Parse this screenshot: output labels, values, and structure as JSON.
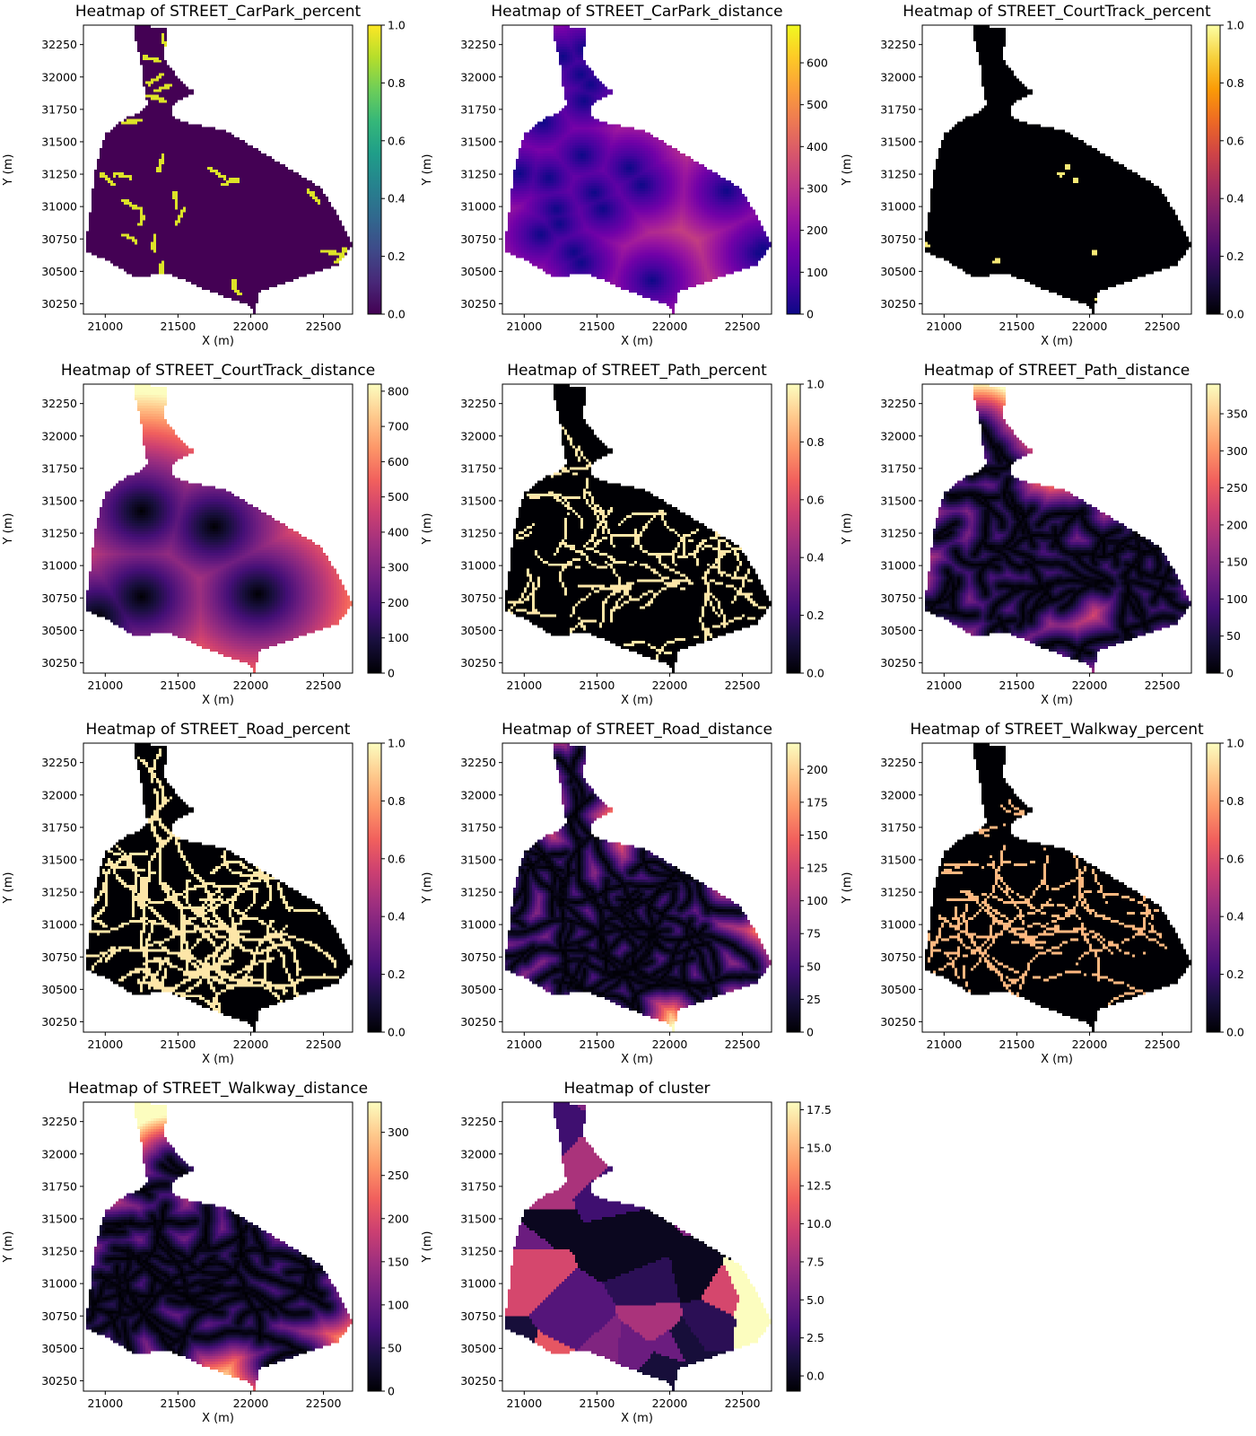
{
  "colormaps": {
    "viridis": [
      "#440154",
      "#482878",
      "#3e4a89",
      "#31688e",
      "#26828e",
      "#1f9e89",
      "#35b779",
      "#6ece58",
      "#b5de2b",
      "#fde725"
    ],
    "plasma": [
      "#0d0887",
      "#46039f",
      "#7201a8",
      "#9c179e",
      "#bd3786",
      "#d8576b",
      "#ed7953",
      "#fb9f3a",
      "#fdca26",
      "#f0f921"
    ],
    "magma": [
      "#000004",
      "#180f3d",
      "#440f76",
      "#721f81",
      "#9e2f7f",
      "#cd4071",
      "#f1605d",
      "#fd9668",
      "#feca8d",
      "#fcfdbf"
    ],
    "inferno": [
      "#000004",
      "#1b0c41",
      "#4a0c6b",
      "#781c6d",
      "#a52c60",
      "#cf4446",
      "#ed6925",
      "#fb9b06",
      "#f7d13d",
      "#fcffa4"
    ]
  },
  "chart_data": [
    {
      "type": "heatmap",
      "title": "Heatmap of STREET_CarPark_percent",
      "xlabel": "X (m)",
      "ylabel": "Y (m)",
      "xlim": [
        20850,
        22700
      ],
      "ylim": [
        30170,
        32400
      ],
      "x_ticks": [
        21000,
        21500,
        22000,
        22500
      ],
      "y_ticks": [
        30250,
        30500,
        30750,
        31000,
        31250,
        31500,
        31750,
        32000,
        32250
      ],
      "colormap": "viridis",
      "clim": [
        0,
        1
      ],
      "colorbar_ticks": [
        "0.0",
        "0.2",
        "0.4",
        "0.6",
        "0.8",
        "1.0"
      ],
      "field": "carpark_pct"
    },
    {
      "type": "heatmap",
      "title": "Heatmap of STREET_CarPark_distance",
      "xlabel": "X (m)",
      "ylabel": "Y (m)",
      "xlim": [
        20850,
        22700
      ],
      "ylim": [
        30170,
        32400
      ],
      "x_ticks": [
        21000,
        21500,
        22000,
        22500
      ],
      "y_ticks": [
        30250,
        30500,
        30750,
        31000,
        31250,
        31500,
        31750,
        32000,
        32250
      ],
      "colormap": "plasma",
      "clim": [
        0,
        690
      ],
      "colorbar_ticks": [
        "0",
        "100",
        "200",
        "300",
        "400",
        "500",
        "600"
      ],
      "field": "carpark_dist"
    },
    {
      "type": "heatmap",
      "title": "Heatmap of STREET_CourtTrack_percent",
      "xlabel": "X (m)",
      "ylabel": "Y (m)",
      "xlim": [
        20850,
        22700
      ],
      "ylim": [
        30170,
        32400
      ],
      "x_ticks": [
        21000,
        21500,
        22000,
        22500
      ],
      "y_ticks": [
        30250,
        30500,
        30750,
        31000,
        31250,
        31500,
        31750,
        32000,
        32250
      ],
      "colormap": "inferno",
      "clim": [
        0,
        1
      ],
      "colorbar_ticks": [
        "0.0",
        "0.2",
        "0.4",
        "0.6",
        "0.8",
        "1.0"
      ],
      "field": "court_pct"
    },
    {
      "type": "heatmap",
      "title": "Heatmap of STREET_CourtTrack_distance",
      "xlabel": "X (m)",
      "ylabel": "Y (m)",
      "xlim": [
        20850,
        22700
      ],
      "ylim": [
        30170,
        32400
      ],
      "x_ticks": [
        21000,
        21500,
        22000,
        22500
      ],
      "y_ticks": [
        30250,
        30500,
        30750,
        31000,
        31250,
        31500,
        31750,
        32000,
        32250
      ],
      "colormap": "magma",
      "clim": [
        0,
        820
      ],
      "colorbar_ticks": [
        "0",
        "100",
        "200",
        "300",
        "400",
        "500",
        "600",
        "700",
        "800"
      ],
      "field": "court_dist"
    },
    {
      "type": "heatmap",
      "title": "Heatmap of STREET_Path_percent",
      "xlabel": "X (m)",
      "ylabel": "Y (m)",
      "xlim": [
        20850,
        22700
      ],
      "ylim": [
        30170,
        32400
      ],
      "x_ticks": [
        21000,
        21500,
        22000,
        22500
      ],
      "y_ticks": [
        30250,
        30500,
        30750,
        31000,
        31250,
        31500,
        31750,
        32000,
        32250
      ],
      "colormap": "magma",
      "clim": [
        0,
        1
      ],
      "colorbar_ticks": [
        "0.0",
        "0.2",
        "0.4",
        "0.6",
        "0.8",
        "1.0"
      ],
      "field": "path_pct"
    },
    {
      "type": "heatmap",
      "title": "Heatmap of STREET_Path_distance",
      "xlabel": "X (m)",
      "ylabel": "Y (m)",
      "xlim": [
        20850,
        22700
      ],
      "ylim": [
        30170,
        32400
      ],
      "x_ticks": [
        21000,
        21500,
        22000,
        22500
      ],
      "y_ticks": [
        30250,
        30500,
        30750,
        31000,
        31250,
        31500,
        31750,
        32000,
        32250
      ],
      "colormap": "magma",
      "clim": [
        0,
        390
      ],
      "colorbar_ticks": [
        "0",
        "50",
        "100",
        "150",
        "200",
        "250",
        "300",
        "350"
      ],
      "field": "path_dist"
    },
    {
      "type": "heatmap",
      "title": "Heatmap of STREET_Road_percent",
      "xlabel": "X (m)",
      "ylabel": "Y (m)",
      "xlim": [
        20850,
        22700
      ],
      "ylim": [
        30170,
        32400
      ],
      "x_ticks": [
        21000,
        21500,
        22000,
        22500
      ],
      "y_ticks": [
        30250,
        30500,
        30750,
        31000,
        31250,
        31500,
        31750,
        32000,
        32250
      ],
      "colormap": "magma",
      "clim": [
        0,
        1
      ],
      "colorbar_ticks": [
        "0.0",
        "0.2",
        "0.4",
        "0.6",
        "0.8",
        "1.0"
      ],
      "field": "road_pct"
    },
    {
      "type": "heatmap",
      "title": "Heatmap of STREET_Road_distance",
      "xlabel": "X (m)",
      "ylabel": "Y (m)",
      "xlim": [
        20850,
        22700
      ],
      "ylim": [
        30170,
        32400
      ],
      "x_ticks": [
        21000,
        21500,
        22000,
        22500
      ],
      "y_ticks": [
        30250,
        30500,
        30750,
        31000,
        31250,
        31500,
        31750,
        32000,
        32250
      ],
      "colormap": "magma",
      "clim": [
        0,
        220
      ],
      "colorbar_ticks": [
        "0",
        "25",
        "50",
        "75",
        "100",
        "125",
        "150",
        "175",
        "200"
      ],
      "field": "road_dist"
    },
    {
      "type": "heatmap",
      "title": "Heatmap of STREET_Walkway_percent",
      "xlabel": "X (m)",
      "ylabel": "Y (m)",
      "xlim": [
        20850,
        22700
      ],
      "ylim": [
        30170,
        32400
      ],
      "x_ticks": [
        21000,
        21500,
        22000,
        22500
      ],
      "y_ticks": [
        30250,
        30500,
        30750,
        31000,
        31250,
        31500,
        31750,
        32000,
        32250
      ],
      "colormap": "magma",
      "clim": [
        0,
        1
      ],
      "colorbar_ticks": [
        "0.0",
        "0.2",
        "0.4",
        "0.6",
        "0.8",
        "1.0"
      ],
      "field": "walk_pct"
    },
    {
      "type": "heatmap",
      "title": "Heatmap of STREET_Walkway_distance",
      "xlabel": "X (m)",
      "ylabel": "Y (m)",
      "xlim": [
        20850,
        22700
      ],
      "ylim": [
        30170,
        32400
      ],
      "x_ticks": [
        21000,
        21500,
        22000,
        22500
      ],
      "y_ticks": [
        30250,
        30500,
        30750,
        31000,
        31250,
        31500,
        31750,
        32000,
        32250
      ],
      "colormap": "magma",
      "clim": [
        0,
        335
      ],
      "colorbar_ticks": [
        "0",
        "50",
        "100",
        "150",
        "200",
        "250",
        "300"
      ],
      "field": "walk_dist"
    },
    {
      "type": "heatmap",
      "title": "Heatmap of cluster",
      "xlabel": "X (m)",
      "ylabel": "Y (m)",
      "xlim": [
        20850,
        22700
      ],
      "ylim": [
        30170,
        32400
      ],
      "x_ticks": [
        21000,
        21500,
        22000,
        22500
      ],
      "y_ticks": [
        30250,
        30500,
        30750,
        31000,
        31250,
        31500,
        31750,
        32000,
        32250
      ],
      "colormap": "magma",
      "clim": [
        -1,
        18
      ],
      "colorbar_ticks": [
        "0.0",
        "2.5",
        "5.0",
        "7.5",
        "10.0",
        "12.5",
        "15.0",
        "17.5"
      ],
      "field": "cluster"
    }
  ]
}
